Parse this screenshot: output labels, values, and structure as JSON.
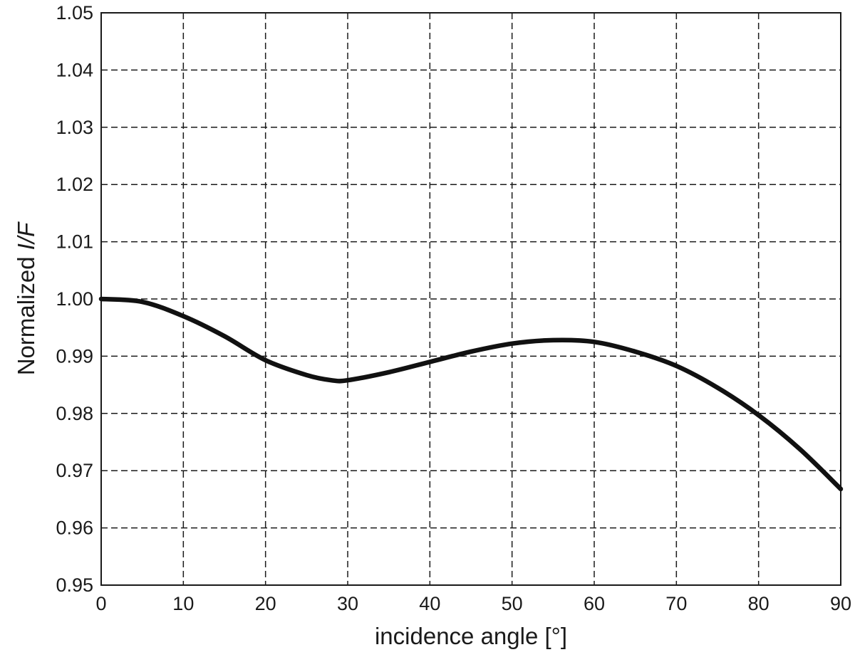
{
  "chart_data": {
    "type": "line",
    "title": "",
    "xlabel": "incidence angle [°]",
    "ylabel_prefix": "Normalized ",
    "ylabel_italic": "I/F",
    "xlim": [
      0,
      90
    ],
    "ylim": [
      0.95,
      1.05
    ],
    "grid": true,
    "x_ticks": [
      "0",
      "10",
      "20",
      "30",
      "40",
      "50",
      "60",
      "70",
      "80",
      "90"
    ],
    "y_ticks": [
      "0.95",
      "0.96",
      "0.97",
      "0.98",
      "0.99",
      "1.00",
      "1.01",
      "1.02",
      "1.03",
      "1.04",
      "1.05"
    ],
    "series": [
      {
        "color": "#111111",
        "x": [
          0,
          5,
          10,
          15,
          20,
          25,
          28,
          30,
          35,
          40,
          45,
          50,
          55,
          60,
          65,
          70,
          75,
          80,
          85,
          90
        ],
        "y": [
          1.0,
          0.9995,
          0.997,
          0.9935,
          0.9893,
          0.9867,
          0.9858,
          0.9858,
          0.9872,
          0.989,
          0.9908,
          0.9922,
          0.9928,
          0.9925,
          0.9908,
          0.9883,
          0.9845,
          0.9797,
          0.9738,
          0.9668
        ]
      }
    ]
  }
}
